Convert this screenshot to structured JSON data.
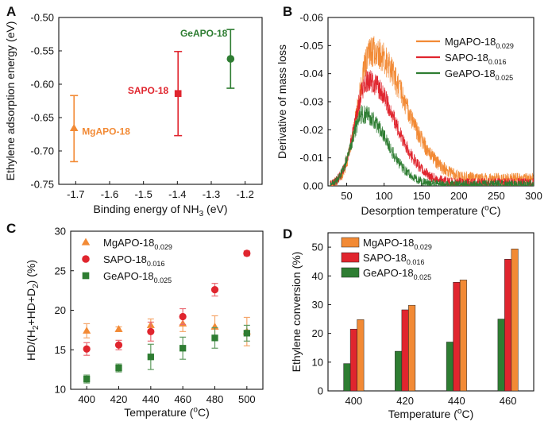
{
  "colors": {
    "mg": "#f28a35",
    "sapo": "#e0252e",
    "ge": "#2e7d32",
    "mg_light": "#f5a66a",
    "sapo_light": "#ea6a72",
    "ge_light": "#5f9a5f"
  },
  "chart_data": [
    {
      "id": "A",
      "panel_label": "A",
      "type": "scatter",
      "xlabel_pre": "Binding energy of NH",
      "xlabel_sub": "3",
      "xlabel_post": " (eV)",
      "ylabel": "Ethylene adsorption energy (eV)",
      "xlim": [
        -1.75,
        -1.15
      ],
      "ylim": [
        -0.75,
        -0.5
      ],
      "xticks": [
        -1.7,
        -1.6,
        -1.5,
        -1.4,
        -1.3,
        -1.2
      ],
      "xtick_labels": [
        "-1.7",
        "-1.6",
        "-1.5",
        "-1.4",
        "-1.3",
        "-1.2"
      ],
      "yticks": [
        -0.75,
        -0.7,
        -0.65,
        -0.6,
        -0.55,
        -0.5
      ],
      "ytick_labels": [
        "-0.75",
        "-0.70",
        "-0.65",
        "-0.60",
        "-0.55",
        "-0.50"
      ],
      "points": [
        {
          "name": "MgAPO-18",
          "x": -1.705,
          "y": -0.666,
          "ylo": -0.716,
          "yhi": -0.617,
          "marker": "triangle",
          "color": "#f28a35"
        },
        {
          "name": "SAPO-18",
          "x": -1.398,
          "y": -0.614,
          "ylo": -0.677,
          "yhi": -0.551,
          "marker": "square",
          "color": "#e0252e"
        },
        {
          "name": "GeAPO-18",
          "x": -1.243,
          "y": -0.562,
          "ylo": -0.606,
          "yhi": -0.518,
          "marker": "circle",
          "color": "#2e7d32"
        }
      ]
    },
    {
      "id": "B",
      "panel_label": "B",
      "type": "line",
      "xlabel": "Desorption temperature (",
      "xlabel_unit_sup": "o",
      "xlabel_unit": "C)",
      "ylabel": "Derivative of mass loss",
      "xlim": [
        25,
        300
      ],
      "ylim": [
        0,
        -0.06
      ],
      "xticks": [
        50,
        100,
        150,
        200,
        250,
        300
      ],
      "xtick_labels": [
        "50",
        "100",
        "150",
        "200",
        "250",
        "300"
      ],
      "yticks": [
        0,
        -0.01,
        -0.02,
        -0.03,
        -0.04,
        -0.05,
        -0.06
      ],
      "ytick_labels": [
        "0.00",
        "-0.01",
        "-0.02",
        "-0.03",
        "-0.04",
        "-0.05",
        "-0.06"
      ],
      "series": [
        {
          "name": "MgAPO-18",
          "sub": "0.029",
          "color": "#f28a35",
          "peak_x": 83,
          "peak_y": -0.048,
          "noise": 0.005,
          "tail": 0.0025,
          "rise": 25,
          "decay": 58
        },
        {
          "name": "SAPO-18",
          "sub": "0.016",
          "color": "#e0252e",
          "peak_x": 78,
          "peak_y": -0.0375,
          "noise": 0.0035,
          "tail": 0.0012,
          "rise": 24,
          "decay": 48
        },
        {
          "name": "GeAPO-18",
          "sub": "0.025",
          "color": "#2e7d32",
          "peak_x": 72,
          "peak_y": -0.0255,
          "noise": 0.0028,
          "tail": 0.0006,
          "rise": 22,
          "decay": 42
        }
      ]
    },
    {
      "id": "C",
      "panel_label": "C",
      "type": "scatter",
      "xlabel": "Temperature (",
      "xlabel_unit_sup": "o",
      "xlabel_unit": "C)",
      "ylabel": "HD/(H2+HD+D2) (%)",
      "ylabel_parts": [
        "HD/(H",
        "2",
        "+HD+D",
        "2",
        ") (%)"
      ],
      "xlim": [
        390,
        510
      ],
      "ylim": [
        10,
        30
      ],
      "xticks": [
        400,
        420,
        440,
        460,
        480,
        500
      ],
      "xtick_labels": [
        "400",
        "420",
        "440",
        "460",
        "480",
        "500"
      ],
      "yticks": [
        10,
        15,
        20,
        25,
        30
      ],
      "ytick_labels": [
        "10",
        "15",
        "20",
        "25",
        "30"
      ],
      "series": [
        {
          "name": "MgAPO-18",
          "sub": "0.029",
          "marker": "triangle",
          "color": "#f28a35",
          "x": [
            400,
            420,
            440,
            460,
            480,
            500
          ],
          "y": [
            17.4,
            17.6,
            18.1,
            18.3,
            17.9,
            17.3
          ],
          "err": [
            0.9,
            0.3,
            0.8,
            1.0,
            1.4,
            1.8
          ]
        },
        {
          "name": "SAPO-18",
          "sub": "0.016",
          "marker": "circle",
          "color": "#e0252e",
          "x": [
            400,
            420,
            440,
            460,
            480,
            500
          ],
          "y": [
            15.1,
            15.6,
            17.3,
            19.2,
            22.6,
            27.2
          ],
          "err": [
            0.8,
            0.6,
            1.2,
            1.0,
            0.8,
            0.3
          ]
        },
        {
          "name": "GeAPO-18",
          "sub": "0.025",
          "marker": "square",
          "color": "#2e7d32",
          "x": [
            400,
            420,
            440,
            460,
            480,
            500
          ],
          "y": [
            11.3,
            12.7,
            14.1,
            15.2,
            16.5,
            17.1
          ],
          "err": [
            0.5,
            0.5,
            1.6,
            1.4,
            1.3,
            1.0
          ]
        }
      ]
    },
    {
      "id": "D",
      "panel_label": "D",
      "type": "bar",
      "xlabel": "Temperature (",
      "xlabel_unit_sup": "o",
      "xlabel_unit": "C)",
      "ylabel": "Ethylene conversion (%)",
      "categories": [
        "400",
        "420",
        "440",
        "460"
      ],
      "ylim": [
        0,
        55
      ],
      "yticks": [
        0,
        10,
        20,
        30,
        40,
        50
      ],
      "ytick_labels": [
        "0",
        "10",
        "20",
        "30",
        "40",
        "50"
      ],
      "series": [
        {
          "name": "GeAPO-18",
          "sub": "0.025",
          "color": "#2e7d32",
          "values": [
            9.5,
            13.8,
            17,
            25
          ]
        },
        {
          "name": "SAPO-18",
          "sub": "0.016",
          "color": "#e0252e",
          "values": [
            21.5,
            28.2,
            37.8,
            45.8
          ]
        },
        {
          "name": "MgAPO-18",
          "sub": "0.029",
          "color": "#f28a35",
          "values": [
            24.8,
            29.8,
            38.6,
            49.4
          ]
        }
      ],
      "legend_order": [
        "MgAPO-18",
        "SAPO-18",
        "GeAPO-18"
      ]
    }
  ]
}
